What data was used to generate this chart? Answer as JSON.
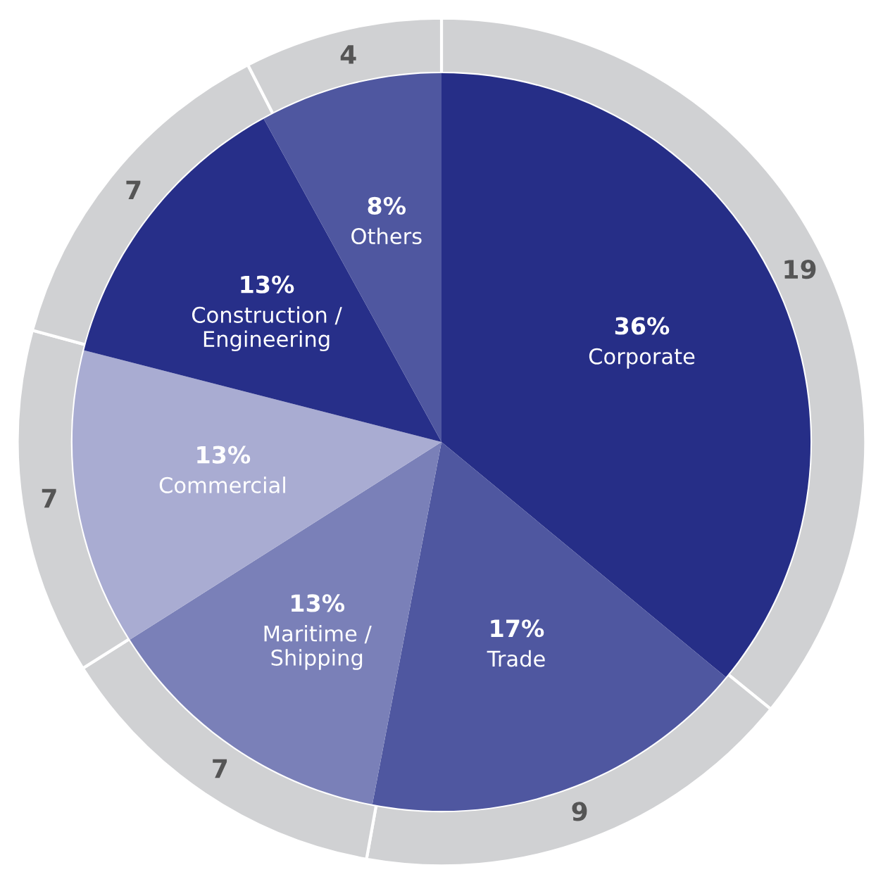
{
  "chart_data": {
    "type": "pie",
    "categories": [
      "Corporate",
      "Trade",
      "Maritime /\nShipping",
      "Commercial",
      "Construction /\nEngineering",
      "Others"
    ],
    "series": [
      {
        "values": [
          36,
          17,
          13,
          13,
          13,
          8
        ],
        "colors": [
          "#262e87",
          "#4f57a0",
          "#7a80b8",
          "#a9acd2",
          "#272f89",
          "#4f57a0"
        ],
        "value_labels": [
          "36%",
          "17%",
          "13%",
          "13%",
          "13%",
          "8%"
        ]
      },
      {
        "values": [
          19,
          9,
          7,
          7,
          7,
          4
        ],
        "color": "#d0d1d3",
        "value_labels": [
          "19",
          "9",
          "7",
          "7",
          "7",
          "4"
        ]
      }
    ]
  }
}
